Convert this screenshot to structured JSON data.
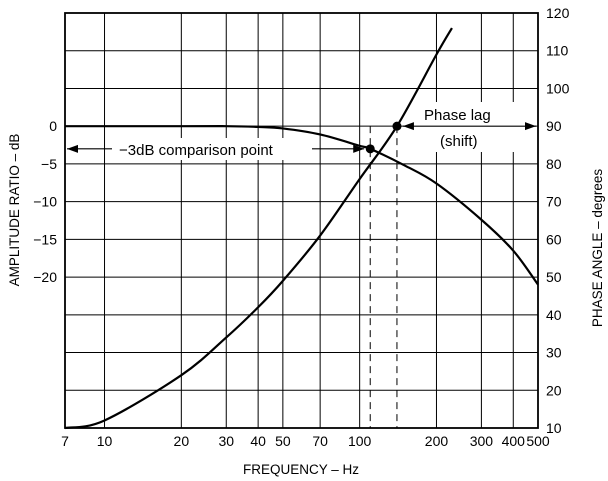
{
  "chart_data": {
    "type": "line",
    "title": "",
    "xlabel": "FREQUENCY – Hz",
    "ylabel_left": "AMPLITUDE RATIO – dB",
    "ylabel_right": "PHASE ANGLE – degrees",
    "x_scale": "log",
    "xlim": [
      7,
      500
    ],
    "x_ticks": [
      7,
      10,
      20,
      30,
      40,
      50,
      70,
      100,
      200,
      300,
      400,
      500
    ],
    "x_tick_labels": [
      "7",
      "10",
      "20",
      "30",
      "40",
      "50",
      "70",
      "100",
      "200",
      "300",
      "400",
      "500"
    ],
    "y_left_ticks": [
      0,
      -5,
      -10,
      -15,
      -20
    ],
    "y_left_tick_labels": [
      "0",
      "−5",
      "−10",
      "−15",
      "−20"
    ],
    "y_right_lim": [
      10,
      120
    ],
    "y_right_ticks": [
      10,
      20,
      30,
      40,
      50,
      60,
      70,
      80,
      90,
      100,
      110,
      120
    ],
    "y_right_tick_labels": [
      "10",
      "20",
      "30",
      "40",
      "50",
      "60",
      "70",
      "80",
      "90",
      "100",
      "110",
      "120"
    ],
    "grid": true,
    "series": [
      {
        "axis": "left",
        "x": [
          7,
          10,
          20,
          30,
          40,
          50,
          70,
          100,
          110,
          150,
          200,
          300,
          400,
          500
        ],
        "y": [
          0,
          0,
          0,
          0,
          -0.1,
          -0.3,
          -1.1,
          -2.6,
          -3.0,
          -5.2,
          -7.6,
          -12.4,
          -16.5,
          -21.0
        ]
      },
      {
        "axis": "right",
        "x": [
          7,
          10,
          20,
          30,
          40,
          50,
          70,
          100,
          140,
          200,
          230
        ],
        "y": [
          10,
          12,
          24,
          34,
          42,
          49,
          61,
          76,
          90,
          109,
          116
        ]
      }
    ],
    "markers": [
      {
        "series": 0,
        "x": 110,
        "y": -3
      },
      {
        "series": 1,
        "x": 140,
        "y": 90
      }
    ],
    "reference_lines": [
      110,
      140
    ],
    "annotations": [
      {
        "text": "−3dB comparison point"
      },
      {
        "text": "Phase lag"
      },
      {
        "text": "(shift)"
      }
    ]
  },
  "colors": {
    "line": "#000000",
    "background": "#ffffff"
  }
}
